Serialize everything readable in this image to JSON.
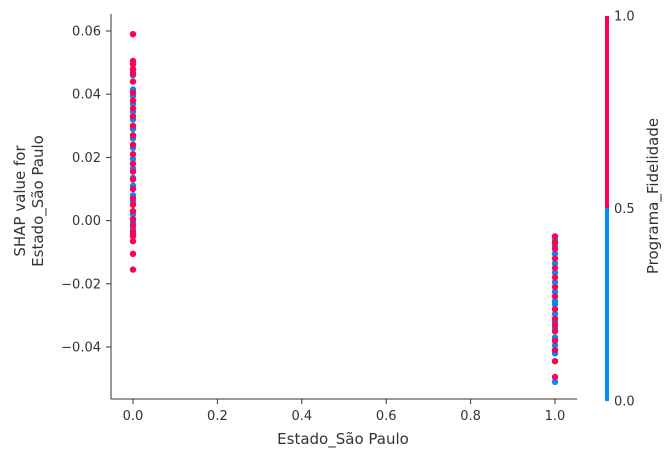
{
  "chart_data": {
    "type": "scatter",
    "title": "",
    "xlabel": "Estado_São Paulo",
    "ylabel_lines": [
      "SHAP value for",
      "Estado_São Paulo"
    ],
    "xlim": [
      -0.05,
      1.05
    ],
    "ylim": [
      -0.056,
      0.065
    ],
    "x_ticks": [
      0.0,
      0.2,
      0.4,
      0.6,
      0.8,
      1.0
    ],
    "x_tick_labels": [
      "0.0",
      "0.2",
      "0.4",
      "0.6",
      "0.8",
      "1.0"
    ],
    "y_ticks": [
      0.06,
      0.04,
      0.02,
      0.0,
      -0.02,
      -0.04
    ],
    "y_tick_labels": [
      "0.06",
      "0.04",
      "0.02",
      "0.00",
      "−0.02",
      "−0.04"
    ],
    "grid": false,
    "colorbar": {
      "label": "Programa_Fidelidade",
      "range": [
        0.0,
        1.0
      ],
      "ticks": [
        1.0,
        0.5,
        0.0
      ],
      "tick_labels": [
        "1.0",
        "0.5",
        "0.0"
      ],
      "colors": {
        "high": "#ff0052",
        "low": "#008bfb"
      }
    },
    "series": [
      {
        "color_value": 1,
        "points": [
          [
            0,
            0.059
          ],
          [
            0,
            0.0505
          ],
          [
            0,
            0.0495
          ],
          [
            0,
            0.048
          ],
          [
            0,
            0.0465
          ],
          [
            0,
            0.044
          ],
          [
            0,
            0.0405
          ],
          [
            0,
            0.038
          ],
          [
            0,
            0.0355
          ],
          [
            0,
            0.033
          ],
          [
            0,
            0.03
          ],
          [
            0,
            0.027
          ],
          [
            0,
            0.024
          ],
          [
            0,
            0.021
          ],
          [
            0,
            0.018
          ],
          [
            0,
            0.0155
          ],
          [
            0,
            0.013
          ],
          [
            0,
            0.01
          ],
          [
            0,
            0.007
          ],
          [
            0,
            0.005
          ],
          [
            0,
            0.003
          ],
          [
            0,
            0.0005
          ],
          [
            0,
            -0.0015
          ],
          [
            0,
            -0.0035
          ],
          [
            0,
            -0.005
          ],
          [
            0,
            -0.0065
          ],
          [
            0,
            -0.0105
          ],
          [
            0,
            -0.0155
          ],
          [
            1,
            -0.005
          ],
          [
            1,
            -0.007
          ],
          [
            1,
            -0.009
          ],
          [
            1,
            -0.012
          ],
          [
            1,
            -0.015
          ],
          [
            1,
            -0.018
          ],
          [
            1,
            -0.021
          ],
          [
            1,
            -0.024
          ],
          [
            1,
            -0.028
          ],
          [
            1,
            -0.031
          ],
          [
            1,
            -0.033
          ],
          [
            1,
            -0.035
          ],
          [
            1,
            -0.038
          ],
          [
            1,
            -0.041
          ],
          [
            1,
            -0.0445
          ],
          [
            1,
            -0.0495
          ]
        ]
      },
      {
        "color_value": 0,
        "points": [
          [
            0,
            0.0475
          ],
          [
            0,
            0.046
          ],
          [
            0,
            0.0415
          ],
          [
            0,
            0.0395
          ],
          [
            0,
            0.037
          ],
          [
            0,
            0.0345
          ],
          [
            0,
            0.032
          ],
          [
            0,
            0.029
          ],
          [
            0,
            0.026
          ],
          [
            0,
            0.023
          ],
          [
            0,
            0.0195
          ],
          [
            0,
            0.0165
          ],
          [
            0,
            0.0135
          ],
          [
            0,
            0.011
          ],
          [
            0,
            0.008
          ],
          [
            0,
            0.006
          ],
          [
            0,
            0.002
          ],
          [
            0,
            -0.0005
          ],
          [
            0,
            -0.0025
          ],
          [
            0,
            -0.0045
          ],
          [
            1,
            -0.006
          ],
          [
            1,
            -0.008
          ],
          [
            1,
            -0.0105
          ],
          [
            1,
            -0.0135
          ],
          [
            1,
            -0.0165
          ],
          [
            1,
            -0.0195
          ],
          [
            1,
            -0.0225
          ],
          [
            1,
            -0.0255
          ],
          [
            1,
            -0.0265
          ],
          [
            1,
            -0.0295
          ],
          [
            1,
            -0.032
          ],
          [
            1,
            -0.034
          ],
          [
            1,
            -0.037
          ],
          [
            1,
            -0.0395
          ],
          [
            1,
            -0.042
          ],
          [
            1,
            -0.051
          ]
        ]
      }
    ]
  }
}
